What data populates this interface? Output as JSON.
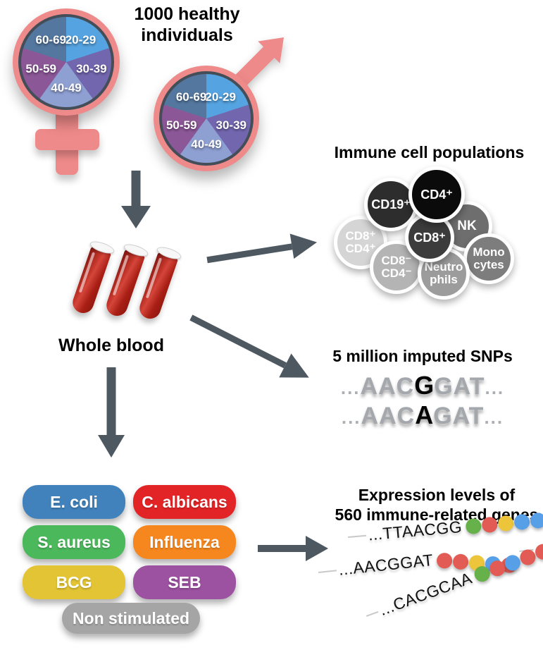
{
  "palette": {
    "pink": "#EF8A8A",
    "outline": "#434E59",
    "arrow": "#4E5861",
    "blood": "#AE2016",
    "dots": {
      "green": "#67B14A",
      "red": "#E25C55",
      "yellow": "#EDC53B",
      "blue": "#57A0E8"
    }
  },
  "header": {
    "title": "1000 healthy\nindividuals"
  },
  "demographics": {
    "age_groups": [
      {
        "label": "20-29",
        "color": "#55A3E0"
      },
      {
        "label": "30-39",
        "color": "#7266AE"
      },
      {
        "label": "40-49",
        "color": "#8E9FD2"
      },
      {
        "label": "50-59",
        "color": "#8B5797"
      },
      {
        "label": "60-69",
        "color": "#54779F"
      }
    ]
  },
  "blood": {
    "label": "Whole blood"
  },
  "immune_cells": {
    "title": "Immune cell populations",
    "cells": [
      {
        "id": "cd8pos-cd4pos",
        "label": "CD8⁺\nCD4⁺",
        "color": "#D5D5D5"
      },
      {
        "id": "nk",
        "label": "NK",
        "color": "#6E6E6E"
      },
      {
        "id": "monocytes",
        "label": "Mono\ncytes",
        "color": "#7D7D7D"
      },
      {
        "id": "cd8neg-cd4neg",
        "label": "CD8⁻\nCD4⁻",
        "color": "#B4B4B4"
      },
      {
        "id": "neutrophils",
        "label": "Neutro\nphils",
        "color": "#9C9C9C"
      },
      {
        "id": "cd19pos",
        "label": "CD19⁺",
        "color": "#2D2D2D"
      },
      {
        "id": "cd8pos",
        "label": "CD8⁺",
        "color": "#3C3C3C"
      },
      {
        "id": "cd4pos",
        "label": "CD4⁺",
        "color": "#0B0B0B"
      }
    ]
  },
  "snps": {
    "title": "5 million imputed SNPs",
    "ellipsis": "...",
    "rows": [
      {
        "pre": "AAC",
        "snp": "G",
        "post": "GAT"
      },
      {
        "pre": "AAC",
        "snp": "A",
        "post": "GAT"
      }
    ]
  },
  "stimuli": {
    "items": [
      {
        "label": "E. coli",
        "color": "#4182BC"
      },
      {
        "label": "C. albicans",
        "color": "#E32427"
      },
      {
        "label": "S. aureus",
        "color": "#4CB85C"
      },
      {
        "label": "Influenza",
        "color": "#F6871F"
      },
      {
        "label": "BCG",
        "color": "#E2C434"
      },
      {
        "label": "SEB",
        "color": "#9C51A1"
      },
      {
        "label": "Non stimulated",
        "color": "#A5A5A5"
      }
    ]
  },
  "expression": {
    "title": "Expression levels of\n560 immune-related genes",
    "rows": [
      {
        "seq": "...TTAACGG",
        "dots": [
          "green",
          "red",
          "yellow",
          "blue",
          "blue"
        ]
      },
      {
        "seq": "...AACGGAT",
        "dots": [
          "red",
          "red",
          "yellow",
          "blue",
          "red"
        ]
      },
      {
        "seq": "...CACGCAA",
        "dots": [
          "green",
          "red",
          "blue",
          "red",
          "red"
        ]
      }
    ]
  }
}
